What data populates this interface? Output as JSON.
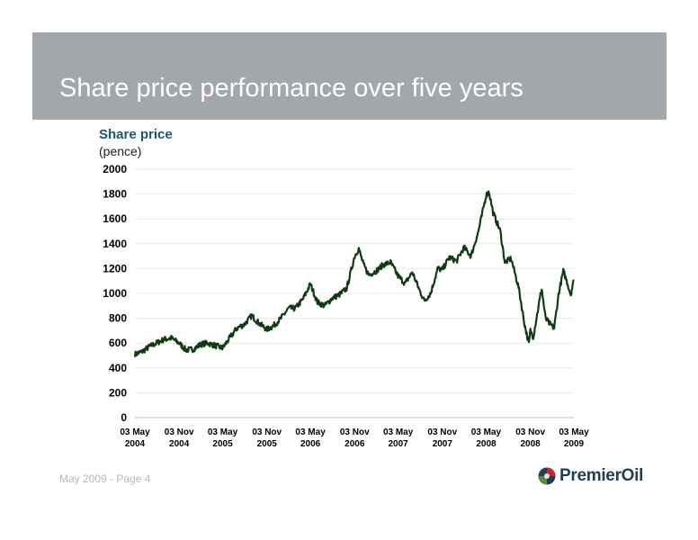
{
  "slide": {
    "title": "Share price performance over five years",
    "footer": "May 2009 - Page 4",
    "logo_text": "PremierOil"
  },
  "colors": {
    "header_band": "#a3a6ab",
    "line": "#0f3a12",
    "axis_title": "#155a6e",
    "logo_text": "#1d3f57"
  },
  "chart_data": {
    "type": "line",
    "title": "",
    "ylabel": "Share price",
    "yunit": "(pence)",
    "xlabel": "",
    "ylim": [
      0,
      2000
    ],
    "yticks": [
      0,
      200,
      400,
      600,
      800,
      1000,
      1200,
      1400,
      1600,
      1800,
      2000
    ],
    "xlim": [
      "2004-05-03",
      "2009-05-03"
    ],
    "xticks": [
      {
        "date": "2004-05-03",
        "line1": "03 May",
        "line2": "2004"
      },
      {
        "date": "2004-11-03",
        "line1": "03 Nov",
        "line2": "2004"
      },
      {
        "date": "2005-05-03",
        "line1": "03 May",
        "line2": "2005"
      },
      {
        "date": "2005-11-03",
        "line1": "03 Nov",
        "line2": "2005"
      },
      {
        "date": "2006-05-03",
        "line1": "03 May",
        "line2": "2006"
      },
      {
        "date": "2006-11-03",
        "line1": "03 Nov",
        "line2": "2006"
      },
      {
        "date": "2007-05-03",
        "line1": "03 May",
        "line2": "2007"
      },
      {
        "date": "2007-11-03",
        "line1": "03 Nov",
        "line2": "2007"
      },
      {
        "date": "2008-05-03",
        "line1": "03 May",
        "line2": "2008"
      },
      {
        "date": "2008-11-03",
        "line1": "03 Nov",
        "line2": "2008"
      },
      {
        "date": "2009-05-03",
        "line1": "03 May",
        "line2": "2009"
      }
    ],
    "grid": true,
    "series": [
      {
        "name": "",
        "points": [
          [
            "2004-05-03",
            510
          ],
          [
            "2004-06-01",
            530
          ],
          [
            "2004-07-01",
            570
          ],
          [
            "2004-08-01",
            600
          ],
          [
            "2004-09-01",
            630
          ],
          [
            "2004-10-01",
            640
          ],
          [
            "2004-11-03",
            600
          ],
          [
            "2004-12-01",
            545
          ],
          [
            "2005-01-01",
            550
          ],
          [
            "2005-02-01",
            590
          ],
          [
            "2005-03-01",
            600
          ],
          [
            "2005-04-01",
            580
          ],
          [
            "2005-05-03",
            560
          ],
          [
            "2005-06-01",
            640
          ],
          [
            "2005-07-01",
            720
          ],
          [
            "2005-08-01",
            750
          ],
          [
            "2005-09-01",
            820
          ],
          [
            "2005-10-01",
            760
          ],
          [
            "2005-11-03",
            710
          ],
          [
            "2005-12-01",
            740
          ],
          [
            "2006-01-01",
            800
          ],
          [
            "2006-02-01",
            880
          ],
          [
            "2006-03-01",
            880
          ],
          [
            "2006-04-01",
            950
          ],
          [
            "2006-05-03",
            1075
          ],
          [
            "2006-06-01",
            930
          ],
          [
            "2006-07-01",
            900
          ],
          [
            "2006-08-01",
            960
          ],
          [
            "2006-09-01",
            990
          ],
          [
            "2006-10-01",
            1040
          ],
          [
            "2006-11-03",
            1300
          ],
          [
            "2006-11-20",
            1360
          ],
          [
            "2006-12-10",
            1230
          ],
          [
            "2007-01-01",
            1150
          ],
          [
            "2007-02-01",
            1180
          ],
          [
            "2007-03-01",
            1230
          ],
          [
            "2007-04-01",
            1250
          ],
          [
            "2007-05-03",
            1140
          ],
          [
            "2007-06-01",
            1080
          ],
          [
            "2007-07-01",
            1170
          ],
          [
            "2007-08-01",
            1020
          ],
          [
            "2007-08-20",
            940
          ],
          [
            "2007-09-15",
            1000
          ],
          [
            "2007-10-15",
            1200
          ],
          [
            "2007-11-03",
            1190
          ],
          [
            "2007-12-01",
            1290
          ],
          [
            "2008-01-01",
            1260
          ],
          [
            "2008-02-01",
            1370
          ],
          [
            "2008-03-01",
            1300
          ],
          [
            "2008-04-01",
            1500
          ],
          [
            "2008-05-03",
            1790
          ],
          [
            "2008-05-15",
            1820
          ],
          [
            "2008-06-01",
            1650
          ],
          [
            "2008-07-01",
            1500
          ],
          [
            "2008-07-20",
            1250
          ],
          [
            "2008-08-15",
            1280
          ],
          [
            "2008-09-15",
            1050
          ],
          [
            "2008-10-10",
            750
          ],
          [
            "2008-10-28",
            590
          ],
          [
            "2008-11-03",
            700
          ],
          [
            "2008-11-15",
            650
          ],
          [
            "2008-12-01",
            830
          ],
          [
            "2008-12-20",
            1040
          ],
          [
            "2009-01-05",
            800
          ],
          [
            "2009-01-20",
            760
          ],
          [
            "2009-02-10",
            720
          ],
          [
            "2009-03-01",
            1000
          ],
          [
            "2009-03-20",
            1180
          ],
          [
            "2009-04-05",
            1090
          ],
          [
            "2009-04-20",
            990
          ],
          [
            "2009-05-03",
            1110
          ]
        ]
      }
    ]
  }
}
